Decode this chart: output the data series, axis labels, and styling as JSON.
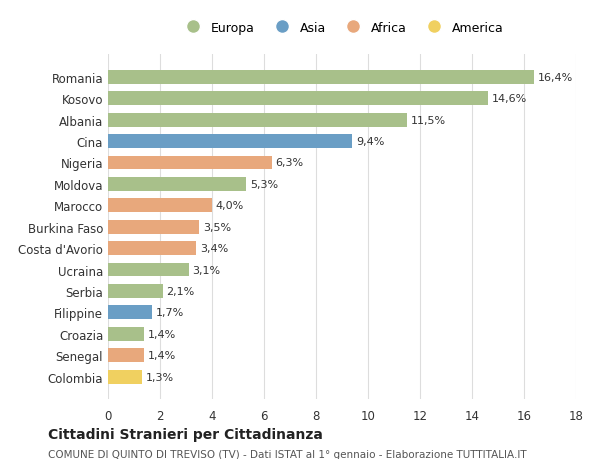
{
  "countries": [
    "Romania",
    "Kosovo",
    "Albania",
    "Cina",
    "Nigeria",
    "Moldova",
    "Marocco",
    "Burkina Faso",
    "Costa d'Avorio",
    "Ucraina",
    "Serbia",
    "Filippine",
    "Croazia",
    "Senegal",
    "Colombia"
  ],
  "values": [
    16.4,
    14.6,
    11.5,
    9.4,
    6.3,
    5.3,
    4.0,
    3.5,
    3.4,
    3.1,
    2.1,
    1.7,
    1.4,
    1.4,
    1.3
  ],
  "labels": [
    "16,4%",
    "14,6%",
    "11,5%",
    "9,4%",
    "6,3%",
    "5,3%",
    "4,0%",
    "3,5%",
    "3,4%",
    "3,1%",
    "2,1%",
    "1,7%",
    "1,4%",
    "1,4%",
    "1,3%"
  ],
  "continents": [
    "Europa",
    "Europa",
    "Europa",
    "Asia",
    "Africa",
    "Europa",
    "Africa",
    "Africa",
    "Africa",
    "Europa",
    "Europa",
    "Asia",
    "Europa",
    "Africa",
    "America"
  ],
  "colors": {
    "Europa": "#a8c08a",
    "Asia": "#6a9ec5",
    "Africa": "#e8a87c",
    "America": "#f0d060"
  },
  "legend_order": [
    "Europa",
    "Asia",
    "Africa",
    "America"
  ],
  "title": "Cittadini Stranieri per Cittadinanza",
  "subtitle": "COMUNE DI QUINTO DI TREVISO (TV) - Dati ISTAT al 1° gennaio - Elaborazione TUTTITALIA.IT",
  "xlim": [
    0,
    18
  ],
  "xticks": [
    0,
    2,
    4,
    6,
    8,
    10,
    12,
    14,
    16,
    18
  ],
  "background_color": "#ffffff",
  "grid_color": "#dddddd"
}
